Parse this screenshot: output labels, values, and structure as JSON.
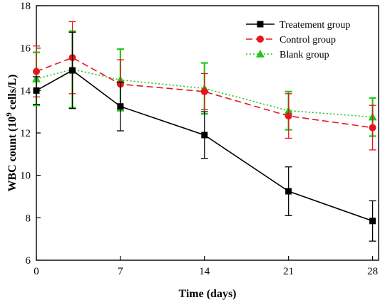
{
  "chart_data": {
    "type": "line",
    "title": "",
    "xlabel": "Time (days)",
    "ylabel_main": "WBC count (10",
    "ylabel_sup": "9",
    "ylabel_tail": " cells/L)",
    "x_ticks": [
      "0",
      "7",
      "14",
      "21",
      "28"
    ],
    "x_tick_values": [
      0,
      7,
      14,
      21,
      28
    ],
    "y_ticks": [
      "6",
      "8",
      "10",
      "12",
      "14",
      "16",
      "18"
    ],
    "y_tick_values": [
      6,
      8,
      10,
      12,
      14,
      16,
      18
    ],
    "xlim": [
      0,
      28.5
    ],
    "ylim": [
      6,
      18
    ],
    "grid": false,
    "legend_position": "top-right",
    "series": [
      {
        "name": "Treatement group",
        "color": "#000000",
        "line_style": "solid",
        "marker": "square",
        "x": [
          0,
          3,
          7,
          14,
          21,
          28
        ],
        "y": [
          14.0,
          14.95,
          13.25,
          11.9,
          9.25,
          7.85
        ],
        "err": [
          0.65,
          1.8,
          1.15,
          1.1,
          1.15,
          0.95
        ]
      },
      {
        "name": "Control group",
        "color": "#e4161e",
        "line_style": "dashed",
        "marker": "circle",
        "x": [
          0,
          3,
          7,
          14,
          21,
          28
        ],
        "y": [
          14.9,
          15.55,
          14.3,
          13.95,
          12.8,
          12.25
        ],
        "err": [
          1.2,
          1.7,
          1.15,
          0.85,
          1.05,
          1.05
        ]
      },
      {
        "name": "Blank group",
        "color": "#22c51e",
        "line_style": "dotted",
        "marker": "triangle",
        "x": [
          0,
          3,
          7,
          14,
          21,
          28
        ],
        "y": [
          14.55,
          15.0,
          14.5,
          14.1,
          13.05,
          12.75
        ],
        "err": [
          1.25,
          1.8,
          1.45,
          1.2,
          0.9,
          0.9
        ]
      }
    ]
  }
}
